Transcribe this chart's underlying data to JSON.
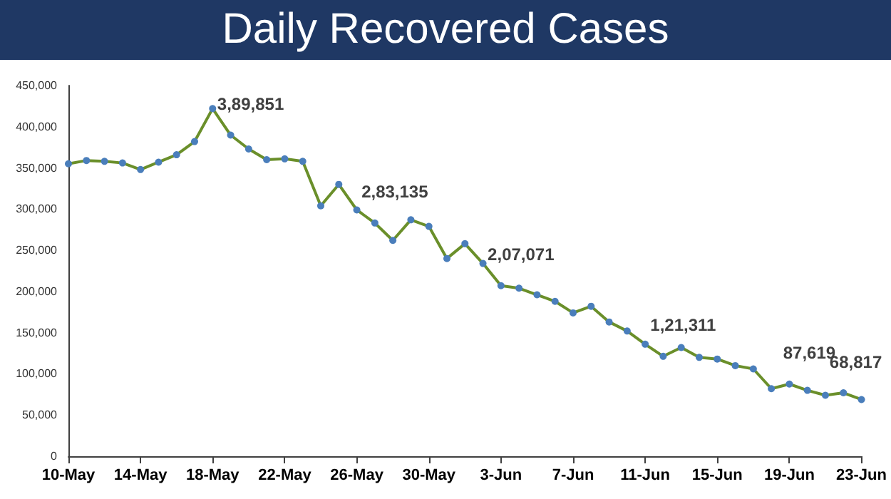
{
  "chart_data": {
    "type": "line",
    "title": "Daily Recovered Cases",
    "x": [
      "--05-10",
      "--05-11",
      "--05-12",
      "--05-13",
      "--05-14",
      "--05-15",
      "--05-16",
      "--05-17",
      "--05-18",
      "--05-19",
      "--05-20",
      "--05-21",
      "--05-22",
      "--05-23",
      "--05-24",
      "--05-25",
      "--05-26",
      "--05-27",
      "--05-28",
      "--05-29",
      "--05-30",
      "--05-31",
      "--06-01",
      "--06-02",
      "--06-03",
      "--06-04",
      "--06-05",
      "--06-06",
      "--06-07",
      "--06-08",
      "--06-09",
      "--06-10",
      "--06-11",
      "--06-12",
      "--06-13",
      "--06-14",
      "--06-15",
      "--06-16",
      "--06-17",
      "--06-18",
      "--06-19",
      "--06-20",
      "--06-21",
      "--06-22",
      "--06-23"
    ],
    "series": [
      {
        "color": "#6a8f2a",
        "values": [
          355000,
          359000,
          358000,
          356000,
          348000,
          357000,
          366000,
          382000,
          422000,
          389851,
          373000,
          360000,
          361000,
          358000,
          304000,
          330000,
          299000,
          283135,
          262000,
          287000,
          279000,
          240000,
          258000,
          234000,
          207071,
          204000,
          196000,
          188000,
          174000,
          182000,
          163000,
          152000,
          136000,
          121311,
          132000,
          120000,
          118000,
          110000,
          106000,
          82000,
          87619,
          80000,
          74000,
          77000,
          68817
        ]
      }
    ],
    "xlim": [
      "--05-10",
      "--06-23"
    ],
    "xticks": [
      {
        "value": "--05-10",
        "label": "10-May"
      },
      {
        "value": "--05-14",
        "label": "14-May"
      },
      {
        "value": "--05-18",
        "label": "18-May"
      },
      {
        "value": "--05-22",
        "label": "22-May"
      },
      {
        "value": "--05-26",
        "label": "26-May"
      },
      {
        "value": "--05-30",
        "label": "30-May"
      },
      {
        "value": "--06-03",
        "label": "3-Jun"
      },
      {
        "value": "--06-07",
        "label": "7-Jun"
      },
      {
        "value": "--06-11",
        "label": "11-Jun"
      },
      {
        "value": "--06-15",
        "label": "15-Jun"
      },
      {
        "value": "--06-19",
        "label": "19-Jun"
      },
      {
        "value": "--06-23",
        "label": "23-Jun"
      }
    ],
    "ylim": [
      0,
      450000
    ],
    "yticks": [
      {
        "value": 0,
        "label": "0"
      },
      {
        "value": 50000,
        "label": "50,000"
      },
      {
        "value": 100000,
        "label": "100,000"
      },
      {
        "value": 150000,
        "label": "150,000"
      },
      {
        "value": 200000,
        "label": "200,000"
      },
      {
        "value": 250000,
        "label": "250,000"
      },
      {
        "value": 300000,
        "label": "300,000"
      },
      {
        "value": 350000,
        "label": "350,000"
      },
      {
        "value": 400000,
        "label": "400,000"
      },
      {
        "value": 450000,
        "label": "450,000"
      }
    ],
    "annotations": [
      {
        "text": "3,89,851",
        "x": "--05-19",
        "y": 389851
      },
      {
        "text": "2,83,135",
        "x": "--05-27",
        "y": 283135
      },
      {
        "text": "2,07,071",
        "x": "--06-03",
        "y": 207071
      },
      {
        "text": "1,21,311",
        "x": "--06-12",
        "y": 121311
      },
      {
        "text": "87,619",
        "x": "--06-19",
        "y": 87619
      },
      {
        "text": "68,817",
        "x": "--06-23",
        "y": 68817
      }
    ],
    "grid": false,
    "marker": "circle",
    "line_style": "solid"
  }
}
